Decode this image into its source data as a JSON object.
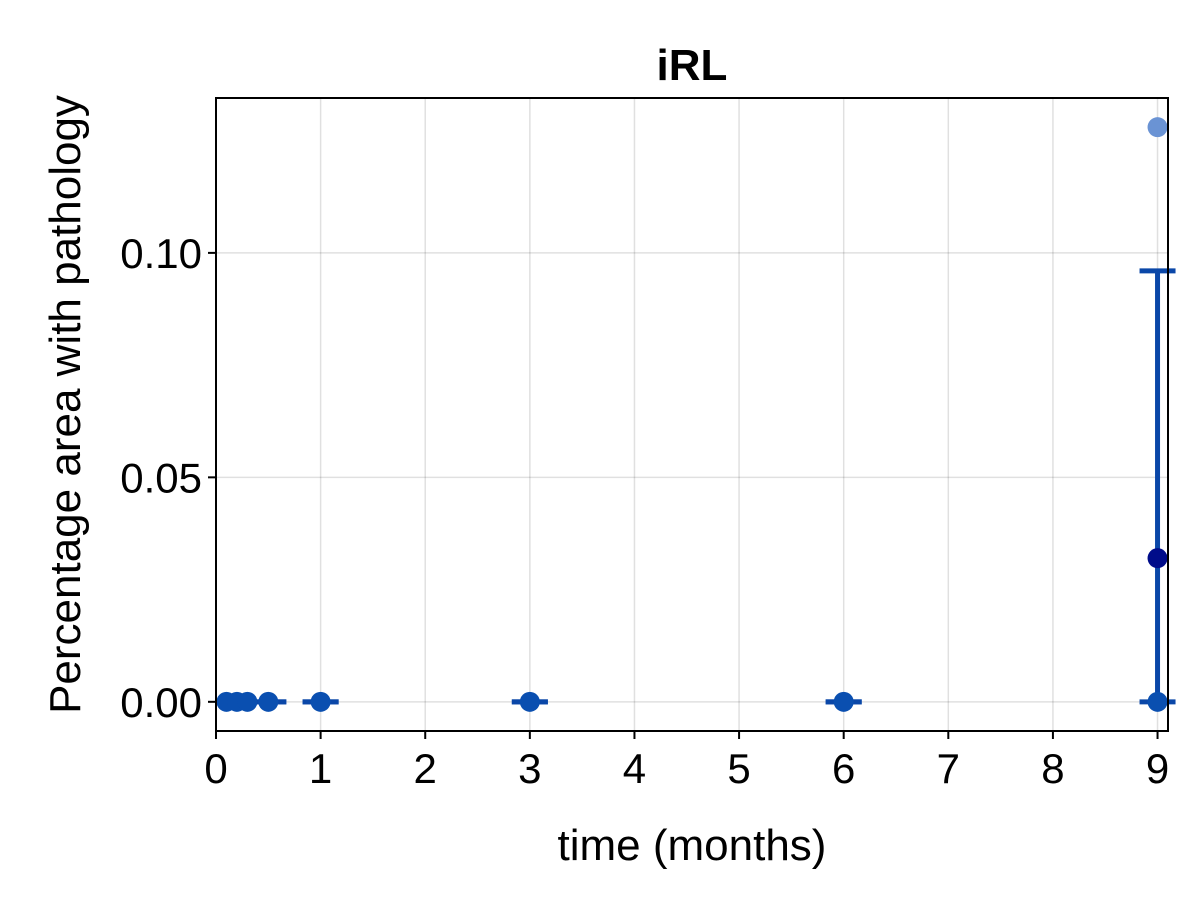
{
  "chart_data": {
    "type": "scatter",
    "title": "iRL",
    "xlabel": "time (months)",
    "ylabel": "Percentage area with pathology",
    "xlim": [
      0,
      9.1
    ],
    "ylim": [
      -0.0065,
      0.1345
    ],
    "xticks": [
      0,
      1,
      2,
      3,
      4,
      5,
      6,
      7,
      8,
      9
    ],
    "xtick_labels": [
      "0",
      "1",
      "2",
      "3",
      "4",
      "5",
      "6",
      "7",
      "8",
      "9"
    ],
    "yticks": [
      0.0,
      0.05,
      0.1
    ],
    "ytick_labels": [
      "0.00",
      "0.05",
      "0.10"
    ],
    "grid": true,
    "series": [
      {
        "role": "points",
        "color": "#0a4fb0",
        "x": [
          0.1,
          0.2,
          0.3,
          0.5,
          1,
          3,
          6,
          9
        ],
        "y": [
          0,
          0,
          0,
          0,
          0,
          0,
          0,
          0
        ]
      },
      {
        "role": "points",
        "color": "#000c8a",
        "x": [
          9
        ],
        "y": [
          0.032
        ]
      },
      {
        "role": "points",
        "color": "#6a93d4",
        "x": [
          9
        ],
        "y": [
          0.128
        ]
      }
    ],
    "error_bars": {
      "color": "#0a47a8",
      "items": [
        {
          "x": 0.5,
          "low": 0,
          "high": 0
        },
        {
          "x": 1,
          "low": 0,
          "high": 0
        },
        {
          "x": 3,
          "low": 0,
          "high": 0
        },
        {
          "x": 6,
          "low": 0,
          "high": 0
        },
        {
          "x": 9,
          "low": 0,
          "high": 0.096
        }
      ]
    }
  }
}
